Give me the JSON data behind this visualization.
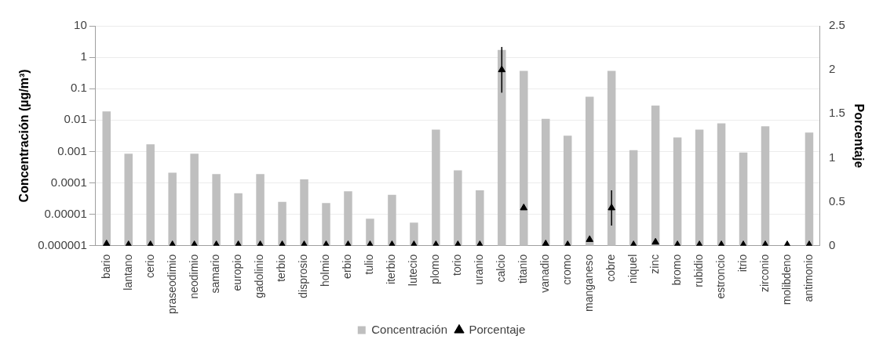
{
  "chart_data": {
    "type": "bar",
    "ylabel": "Concentración (µg/m³)",
    "y2label": "Porcentaje",
    "categories": [
      "bario",
      "lantano",
      "cerio",
      "praseodimio",
      "neodimio",
      "samario",
      "europio",
      "gadolinio",
      "terbio",
      "disprosio",
      "holmio",
      "erbio",
      "tulio",
      "iterbio",
      "lutecio",
      "plomo",
      "torio",
      "uranio",
      "calcio",
      "titanio",
      "vanadio",
      "cromo",
      "manganeso",
      "cobre",
      "niquel",
      "zinc",
      "bromo",
      "rubidio",
      "estroncio",
      "itrio",
      "zirconio",
      "molibdeno",
      "antimonio"
    ],
    "series": [
      {
        "name": "Concentración",
        "color": "#bfbfbf",
        "values": [
          0.019,
          0.00085,
          0.0017,
          0.00021,
          0.00085,
          0.00019,
          4.7e-05,
          0.00019,
          2.5e-05,
          0.00013,
          2.3e-05,
          5.4e-05,
          7.2e-06,
          4.2e-05,
          5.4e-06,
          0.005,
          0.00025,
          5.8e-05,
          1.7,
          0.37,
          0.011,
          0.0032,
          0.055,
          0.37,
          0.0011,
          0.029,
          0.0028,
          0.005,
          0.0079,
          0.00093,
          0.0063,
          null,
          0.004
        ]
      },
      {
        "name": "Porcentaje",
        "type": "scatter",
        "axis": "y2",
        "color": "#000000",
        "marker": "triangle",
        "values": [
          0.02,
          0.01,
          0.01,
          0.01,
          0.01,
          0.01,
          0.01,
          0.01,
          0.01,
          0.01,
          0.01,
          0.01,
          0.01,
          0.01,
          0.01,
          0.01,
          0.01,
          0.01,
          2.0,
          0.43,
          0.02,
          0.01,
          0.07,
          0.43,
          0.01,
          0.04,
          0.01,
          0.01,
          0.01,
          0.01,
          0.01,
          0.01,
          0.01
        ],
        "errors": [
          null,
          null,
          null,
          null,
          null,
          null,
          null,
          null,
          null,
          null,
          null,
          null,
          null,
          null,
          null,
          null,
          null,
          null,
          0.26,
          null,
          null,
          null,
          null,
          0.2,
          null,
          null,
          null,
          null,
          null,
          null,
          null,
          null,
          null
        ]
      }
    ],
    "log": "y",
    "ylim": [
      1e-06,
      10
    ],
    "yticks": [
      {
        "value": 1e-06,
        "label": "0.000001"
      },
      {
        "value": 1e-05,
        "label": "0.00001"
      },
      0.0001,
      0.001,
      0.01,
      0.1,
      1,
      10
    ],
    "y2lim": [
      0,
      2.5
    ],
    "y2ticks": [
      0,
      0.5,
      1,
      1.5,
      2,
      2.5
    ],
    "grid": "y",
    "legend": "bottom"
  }
}
